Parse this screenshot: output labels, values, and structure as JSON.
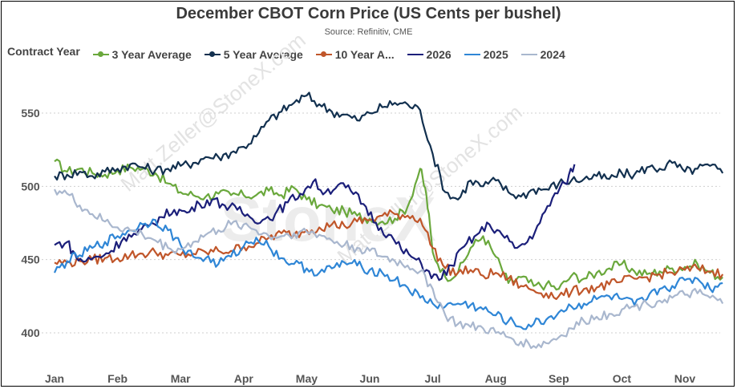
{
  "chart_data": {
    "type": "line",
    "title": "December CBOT Corn Price (US Cents per bushel)",
    "subtitle": "Source: Refinitiv, CME",
    "legend_title": "Contract Year",
    "legend_placement": "top",
    "x_categories": [
      "Jan",
      "Feb",
      "Mar",
      "Apr",
      "May",
      "Jun",
      "Jul",
      "Aug",
      "Sep",
      "Oct",
      "Nov"
    ],
    "y_ticks": [
      400,
      450,
      500,
      550
    ],
    "ylim": [
      380,
      575
    ],
    "grid": "horizontal dotted",
    "watermark": "Matt.Zeller@StoneX.com",
    "watermark_logo": "StoneX",
    "series": [
      {
        "name": "3 Year Average",
        "color": "#6aa83c",
        "marker": true,
        "points": [
          [
            0,
            517
          ],
          [
            0.2,
            510
          ],
          [
            0.4,
            512
          ],
          [
            0.6,
            509
          ],
          [
            0.8,
            508
          ],
          [
            1.0,
            511
          ],
          [
            1.2,
            513
          ],
          [
            1.4,
            512
          ],
          [
            1.6,
            509
          ],
          [
            1.8,
            502
          ],
          [
            2.0,
            496
          ],
          [
            2.2,
            494
          ],
          [
            2.4,
            493
          ],
          [
            2.6,
            495
          ],
          [
            2.8,
            494
          ],
          [
            3.0,
            494
          ],
          [
            3.2,
            494
          ],
          [
            3.4,
            497
          ],
          [
            3.6,
            494
          ],
          [
            3.8,
            499
          ],
          [
            4.0,
            491
          ],
          [
            4.2,
            487
          ],
          [
            4.4,
            484
          ],
          [
            4.6,
            483
          ],
          [
            4.8,
            480
          ],
          [
            5.0,
            478
          ],
          [
            5.2,
            476
          ],
          [
            5.4,
            478
          ],
          [
            5.6,
            486
          ],
          [
            5.8,
            512
          ],
          [
            5.9,
            494
          ],
          [
            6.0,
            455
          ],
          [
            6.2,
            438
          ],
          [
            6.4,
            441
          ],
          [
            6.6,
            458
          ],
          [
            6.8,
            466
          ],
          [
            7.0,
            452
          ],
          [
            7.2,
            434
          ],
          [
            7.4,
            438
          ],
          [
            7.6,
            432
          ],
          [
            7.8,
            433
          ],
          [
            8.0,
            430
          ],
          [
            8.2,
            439
          ],
          [
            8.4,
            437
          ],
          [
            8.6,
            441
          ],
          [
            8.8,
            444
          ],
          [
            9.0,
            447
          ],
          [
            9.2,
            442
          ],
          [
            9.4,
            440
          ],
          [
            9.6,
            442
          ],
          [
            9.8,
            444
          ],
          [
            10.0,
            445
          ],
          [
            10.2,
            447
          ],
          [
            10.4,
            441
          ],
          [
            10.6,
            438
          ]
        ]
      },
      {
        "name": "5 Year Average",
        "color": "#12304f",
        "marker": true,
        "points": [
          [
            0,
            507
          ],
          [
            0.2,
            508
          ],
          [
            0.4,
            510
          ],
          [
            0.6,
            507
          ],
          [
            0.8,
            510
          ],
          [
            1.0,
            512
          ],
          [
            1.2,
            515
          ],
          [
            1.4,
            513
          ],
          [
            1.6,
            511
          ],
          [
            1.8,
            512
          ],
          [
            2.0,
            514
          ],
          [
            2.2,
            516
          ],
          [
            2.4,
            520
          ],
          [
            2.6,
            520
          ],
          [
            2.8,
            523
          ],
          [
            3.0,
            527
          ],
          [
            3.2,
            534
          ],
          [
            3.4,
            545
          ],
          [
            3.6,
            551
          ],
          [
            3.8,
            557
          ],
          [
            4.0,
            562
          ],
          [
            4.2,
            556
          ],
          [
            4.4,
            551
          ],
          [
            4.6,
            549
          ],
          [
            4.8,
            545
          ],
          [
            5.0,
            550
          ],
          [
            5.2,
            554
          ],
          [
            5.4,
            557
          ],
          [
            5.6,
            556
          ],
          [
            5.8,
            552
          ],
          [
            6.0,
            522
          ],
          [
            6.2,
            496
          ],
          [
            6.4,
            491
          ],
          [
            6.6,
            504
          ],
          [
            6.8,
            500
          ],
          [
            7.0,
            504
          ],
          [
            7.2,
            496
          ],
          [
            7.4,
            493
          ],
          [
            7.6,
            498
          ],
          [
            7.8,
            498
          ],
          [
            8.0,
            502
          ],
          [
            8.2,
            504
          ],
          [
            8.4,
            505
          ],
          [
            8.6,
            507
          ],
          [
            8.8,
            505
          ],
          [
            9.0,
            509
          ],
          [
            9.2,
            508
          ],
          [
            9.4,
            513
          ],
          [
            9.6,
            512
          ],
          [
            9.8,
            516
          ],
          [
            10.0,
            510
          ],
          [
            10.2,
            512
          ],
          [
            10.4,
            514
          ],
          [
            10.6,
            509
          ]
        ]
      },
      {
        "name": "10 Year A...",
        "color": "#c0562a",
        "marker": true,
        "points": [
          [
            0,
            448
          ],
          [
            0.2,
            448
          ],
          [
            0.4,
            449
          ],
          [
            0.6,
            450
          ],
          [
            0.8,
            451
          ],
          [
            1.0,
            451
          ],
          [
            1.2,
            453
          ],
          [
            1.4,
            454
          ],
          [
            1.6,
            455
          ],
          [
            1.8,
            453
          ],
          [
            2.0,
            453
          ],
          [
            2.2,
            454
          ],
          [
            2.4,
            455
          ],
          [
            2.6,
            456
          ],
          [
            2.8,
            456
          ],
          [
            3.0,
            459
          ],
          [
            3.2,
            461
          ],
          [
            3.4,
            465
          ],
          [
            3.6,
            468
          ],
          [
            3.8,
            467
          ],
          [
            4.0,
            470
          ],
          [
            4.2,
            472
          ],
          [
            4.4,
            474
          ],
          [
            4.6,
            473
          ],
          [
            4.8,
            476
          ],
          [
            5.0,
            477
          ],
          [
            5.2,
            480
          ],
          [
            5.4,
            481
          ],
          [
            5.6,
            480
          ],
          [
            5.8,
            478
          ],
          [
            6.0,
            458
          ],
          [
            6.2,
            444
          ],
          [
            6.4,
            441
          ],
          [
            6.6,
            443
          ],
          [
            6.8,
            439
          ],
          [
            7.0,
            441
          ],
          [
            7.2,
            437
          ],
          [
            7.4,
            432
          ],
          [
            7.6,
            429
          ],
          [
            7.8,
            427
          ],
          [
            8.0,
            425
          ],
          [
            8.2,
            428
          ],
          [
            8.4,
            430
          ],
          [
            8.6,
            431
          ],
          [
            8.8,
            433
          ],
          [
            9.0,
            435
          ],
          [
            9.2,
            437
          ],
          [
            9.4,
            438
          ],
          [
            9.6,
            440
          ],
          [
            9.8,
            441
          ],
          [
            10.0,
            443
          ],
          [
            10.2,
            444
          ],
          [
            10.4,
            442
          ],
          [
            10.6,
            440
          ]
        ]
      },
      {
        "name": "2026",
        "color": "#1b1f7a",
        "marker": false,
        "points": [
          [
            0,
            460
          ],
          [
            0.2,
            462
          ],
          [
            0.35,
            451
          ],
          [
            0.5,
            449
          ],
          [
            0.7,
            452
          ],
          [
            0.9,
            456
          ],
          [
            1.1,
            465
          ],
          [
            1.3,
            467
          ],
          [
            1.5,
            473
          ],
          [
            1.7,
            479
          ],
          [
            1.9,
            484
          ],
          [
            2.1,
            482
          ],
          [
            2.3,
            488
          ],
          [
            2.5,
            491
          ],
          [
            2.7,
            487
          ],
          [
            2.9,
            484
          ],
          [
            3.1,
            479
          ],
          [
            3.3,
            477
          ],
          [
            3.5,
            481
          ],
          [
            3.7,
            489
          ],
          [
            3.9,
            495
          ],
          [
            4.1,
            503
          ],
          [
            4.3,
            496
          ],
          [
            4.5,
            501
          ],
          [
            4.7,
            497
          ],
          [
            4.9,
            488
          ],
          [
            5.1,
            475
          ],
          [
            5.3,
            467
          ],
          [
            5.5,
            457
          ],
          [
            5.7,
            451
          ],
          [
            5.9,
            443
          ],
          [
            6.1,
            436
          ],
          [
            6.3,
            446
          ],
          [
            6.5,
            459
          ],
          [
            6.7,
            467
          ],
          [
            6.9,
            474
          ],
          [
            7.1,
            467
          ],
          [
            7.3,
            458
          ],
          [
            7.5,
            462
          ],
          [
            7.7,
            475
          ],
          [
            7.9,
            492
          ],
          [
            8.1,
            502
          ],
          [
            8.25,
            515
          ]
        ]
      },
      {
        "name": "2025",
        "color": "#2f86d6",
        "marker": false,
        "points": [
          [
            0,
            441
          ],
          [
            0.2,
            449
          ],
          [
            0.4,
            453
          ],
          [
            0.6,
            458
          ],
          [
            0.8,
            462
          ],
          [
            1.0,
            466
          ],
          [
            1.2,
            470
          ],
          [
            1.4,
            474
          ],
          [
            1.6,
            477
          ],
          [
            1.8,
            470
          ],
          [
            2.0,
            460
          ],
          [
            2.2,
            452
          ],
          [
            2.4,
            451
          ],
          [
            2.6,
            447
          ],
          [
            2.8,
            452
          ],
          [
            3.0,
            459
          ],
          [
            3.2,
            465
          ],
          [
            3.4,
            459
          ],
          [
            3.6,
            451
          ],
          [
            3.8,
            447
          ],
          [
            4.0,
            444
          ],
          [
            4.2,
            441
          ],
          [
            4.4,
            444
          ],
          [
            4.6,
            448
          ],
          [
            4.8,
            446
          ],
          [
            5.0,
            443
          ],
          [
            5.2,
            441
          ],
          [
            5.4,
            436
          ],
          [
            5.6,
            431
          ],
          [
            5.8,
            424
          ],
          [
            6.0,
            420
          ],
          [
            6.2,
            418
          ],
          [
            6.4,
            420
          ],
          [
            6.6,
            419
          ],
          [
            6.8,
            416
          ],
          [
            7.0,
            412
          ],
          [
            7.2,
            408
          ],
          [
            7.4,
            404
          ],
          [
            7.6,
            406
          ],
          [
            7.8,
            409
          ],
          [
            8.0,
            414
          ],
          [
            8.2,
            418
          ],
          [
            8.4,
            420
          ],
          [
            8.6,
            423
          ],
          [
            8.8,
            425
          ],
          [
            9.0,
            423
          ],
          [
            9.2,
            419
          ],
          [
            9.4,
            423
          ],
          [
            9.6,
            430
          ],
          [
            9.8,
            432
          ],
          [
            10.0,
            436
          ],
          [
            10.2,
            437
          ],
          [
            10.4,
            430
          ],
          [
            10.6,
            434
          ]
        ]
      },
      {
        "name": "2024",
        "color": "#a9b7ce",
        "marker": false,
        "points": [
          [
            0,
            498
          ],
          [
            0.2,
            495
          ],
          [
            0.4,
            487
          ],
          [
            0.6,
            481
          ],
          [
            0.8,
            476
          ],
          [
            1.0,
            472
          ],
          [
            1.2,
            470
          ],
          [
            1.4,
            467
          ],
          [
            1.6,
            463
          ],
          [
            1.8,
            458
          ],
          [
            2.0,
            457
          ],
          [
            2.2,
            462
          ],
          [
            2.4,
            467
          ],
          [
            2.6,
            470
          ],
          [
            2.8,
            474
          ],
          [
            3.0,
            474
          ],
          [
            3.2,
            470
          ],
          [
            3.4,
            466
          ],
          [
            3.6,
            466
          ],
          [
            3.8,
            468
          ],
          [
            4.0,
            469
          ],
          [
            4.2,
            467
          ],
          [
            4.4,
            463
          ],
          [
            4.6,
            460
          ],
          [
            4.8,
            458
          ],
          [
            5.0,
            456
          ],
          [
            5.2,
            452
          ],
          [
            5.4,
            449
          ],
          [
            5.6,
            446
          ],
          [
            5.8,
            442
          ],
          [
            6.0,
            430
          ],
          [
            6.2,
            412
          ],
          [
            6.4,
            406
          ],
          [
            6.6,
            404
          ],
          [
            6.8,
            403
          ],
          [
            7.0,
            400
          ],
          [
            7.2,
            397
          ],
          [
            7.4,
            394
          ],
          [
            7.6,
            391
          ],
          [
            7.8,
            393
          ],
          [
            8.0,
            397
          ],
          [
            8.2,
            403
          ],
          [
            8.4,
            408
          ],
          [
            8.6,
            411
          ],
          [
            8.8,
            413
          ],
          [
            9.0,
            416
          ],
          [
            9.2,
            418
          ],
          [
            9.4,
            420
          ],
          [
            9.6,
            422
          ],
          [
            9.8,
            424
          ],
          [
            10.0,
            426
          ],
          [
            10.2,
            427
          ],
          [
            10.4,
            424
          ],
          [
            10.6,
            420
          ]
        ]
      }
    ]
  }
}
